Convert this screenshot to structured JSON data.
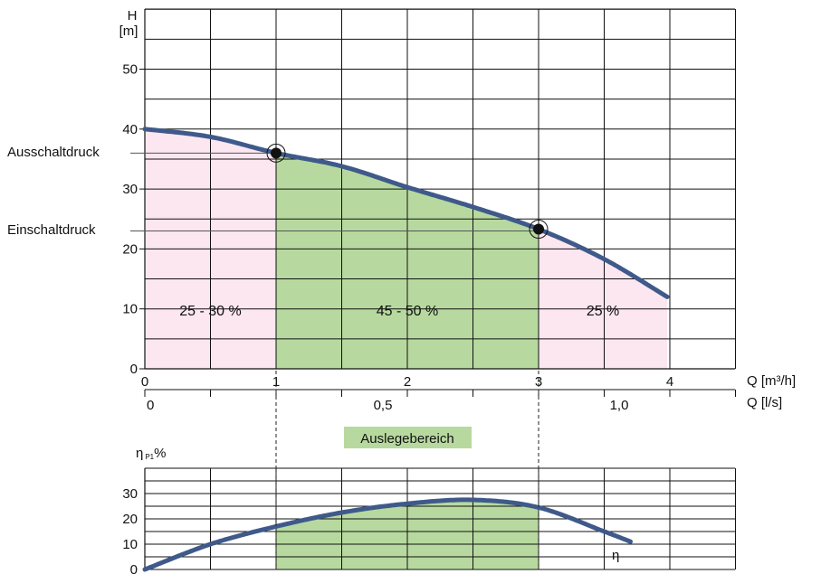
{
  "colors": {
    "curve": "#3F5A8A",
    "zone_outer": "#FCE6F0",
    "zone_main": "#B7D99F",
    "grid": "#111111",
    "guide": "#555555",
    "badge_bg": "#B7D99F"
  },
  "chart_data": [
    {
      "type": "area",
      "id": "pump-curve",
      "ylabel_lines": [
        "H",
        "[m]"
      ],
      "xlabel_primary": "Q [m³/h]",
      "xlabel_secondary": "Q [l/s]",
      "xlim": [
        0,
        4.5
      ],
      "ylim": [
        0,
        60
      ],
      "y_ticks": [
        0,
        10,
        20,
        30,
        40,
        50
      ],
      "x_ticks": [
        0,
        1,
        2,
        3,
        4
      ],
      "x_tick_labels": [
        "0",
        "1",
        "2",
        "3",
        "4"
      ],
      "secondary_ticks": [
        {
          "label": "0",
          "at_q": 0
        },
        {
          "label": "0,5",
          "at_q": 1.8
        },
        {
          "label": "1,0",
          "at_q": 3.6
        }
      ],
      "grid": true,
      "curve": {
        "x": [
          0,
          0.5,
          1,
          1.5,
          2,
          2.5,
          3,
          3.5,
          3.98
        ],
        "y": [
          40,
          38.7,
          36,
          33.8,
          30.3,
          27,
          23.3,
          18.3,
          12
        ]
      },
      "operating_points": [
        {
          "label": "Ausschaltdruck",
          "x": 1,
          "y": 36
        },
        {
          "label": "Einschaltdruck",
          "x": 3,
          "y": 23
        }
      ],
      "zones": [
        {
          "label": "25 - 30 %",
          "from": 0,
          "to": 1,
          "style": "outer"
        },
        {
          "label": "45 - 50 %",
          "from": 1,
          "to": 3,
          "style": "main"
        },
        {
          "label": "25 %",
          "from": 3,
          "to": 3.98,
          "style": "outer"
        }
      ]
    },
    {
      "type": "area",
      "id": "efficiency-curve",
      "ylabel": "η P1%",
      "ylabel_symbol": "η",
      "ylabel_sub": "P1",
      "ylabel_unit": "%",
      "xlim": [
        0,
        4.5
      ],
      "ylim": [
        0,
        40
      ],
      "y_ticks": [
        0,
        10,
        20,
        30
      ],
      "grid": true,
      "curve_label": "η",
      "curve": {
        "x": [
          0,
          0.5,
          1,
          1.5,
          2,
          2.5,
          3,
          3.5,
          3.7
        ],
        "y": [
          0,
          10,
          17,
          22.5,
          26,
          27.5,
          24.5,
          15,
          11
        ]
      },
      "shaded": {
        "from": 1,
        "to": 3
      }
    }
  ],
  "badge": {
    "label": "Auslegebereich"
  }
}
